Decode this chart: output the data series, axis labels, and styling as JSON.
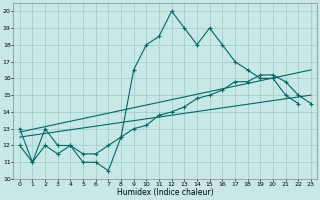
{
  "xlabel": "Humidex (Indice chaleur)",
  "background_color": "#c8e8e8",
  "grid_color": "#a0c8c8",
  "line_color": "#006666",
  "xlim": [
    -0.5,
    23.5
  ],
  "ylim": [
    10,
    20.5
  ],
  "xticks": [
    0,
    1,
    2,
    3,
    4,
    5,
    6,
    7,
    8,
    9,
    10,
    11,
    12,
    13,
    14,
    15,
    16,
    17,
    18,
    19,
    20,
    21,
    22,
    23
  ],
  "yticks": [
    10,
    11,
    12,
    13,
    14,
    15,
    16,
    17,
    18,
    19,
    20
  ],
  "line1_x": [
    0,
    1,
    2,
    3,
    4,
    5,
    6,
    7,
    8,
    9,
    10,
    11,
    12,
    13,
    14,
    15,
    16,
    17,
    18,
    19,
    20,
    21,
    22
  ],
  "line1_y": [
    13,
    11,
    13,
    12,
    12,
    11,
    11,
    10.5,
    12.5,
    16.5,
    18,
    18.5,
    20,
    19,
    18,
    19,
    18,
    17,
    16.5,
    16,
    16,
    15,
    14.5
  ],
  "line2_x": [
    0,
    1,
    2,
    3,
    4,
    5,
    6,
    7,
    8,
    9,
    10,
    11,
    12,
    13,
    14,
    15,
    16,
    17,
    18,
    19,
    20,
    21,
    22,
    23
  ],
  "line2_y": [
    12,
    11,
    12,
    11.5,
    12,
    11.5,
    11.5,
    12,
    12.5,
    13,
    13.2,
    13.8,
    14.0,
    14.3,
    14.8,
    15.0,
    15.3,
    15.8,
    15.8,
    16.2,
    16.2,
    15.8,
    15.0,
    14.5
  ],
  "line3_x": [
    0,
    23
  ],
  "line3_y": [
    12.8,
    16.5
  ],
  "line4_x": [
    0,
    23
  ],
  "line4_y": [
    12.5,
    15.0
  ]
}
